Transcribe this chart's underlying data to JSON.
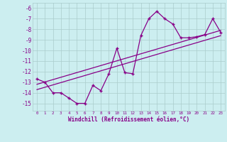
{
  "x": [
    0,
    1,
    2,
    3,
    4,
    5,
    6,
    7,
    8,
    9,
    10,
    11,
    12,
    13,
    14,
    15,
    16,
    17,
    18,
    19,
    20,
    21,
    22,
    23
  ],
  "windchill": [
    -12.7,
    -13.0,
    -14.0,
    -14.0,
    -14.5,
    -15.0,
    -15.0,
    -13.3,
    -13.8,
    -12.2,
    -9.8,
    -12.1,
    -12.2,
    -8.6,
    -7.0,
    -6.3,
    -7.0,
    -7.5,
    -8.8,
    -8.8,
    -8.7,
    -8.5,
    -7.0,
    -8.3
  ],
  "line1_x": [
    0,
    23
  ],
  "line1_y": [
    -13.2,
    -8.1
  ],
  "line2_x": [
    0,
    23
  ],
  "line2_y": [
    -13.7,
    -8.6
  ],
  "main_color": "#880088",
  "bg_color": "#cceef0",
  "grid_color": "#aacccc",
  "xlabel": "Windchill (Refroidissement éolien,°C)",
  "yticks": [
    -6,
    -7,
    -8,
    -9,
    -10,
    -11,
    -12,
    -13,
    -14,
    -15
  ],
  "xticks": [
    0,
    1,
    2,
    3,
    4,
    5,
    6,
    7,
    8,
    9,
    10,
    11,
    12,
    13,
    14,
    15,
    16,
    17,
    18,
    19,
    20,
    21,
    22,
    23
  ],
  "ylim": [
    -15.7,
    -5.5
  ],
  "xlim": [
    -0.5,
    23.5
  ]
}
